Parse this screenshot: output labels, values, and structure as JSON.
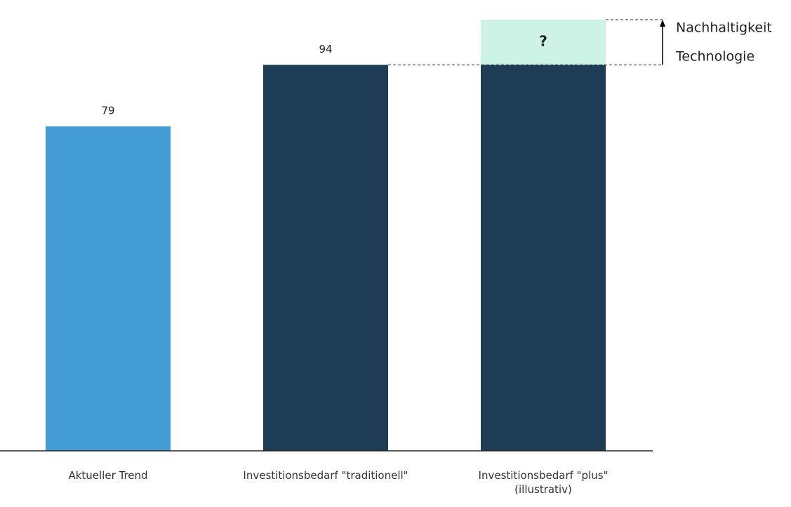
{
  "chart_data": {
    "type": "bar",
    "stacked": true,
    "categories": [
      "Aktueller Trend",
      "Investitionsbedarf \"traditionell\"",
      "Investitionsbedarf \"plus\"\n(illustrativ)"
    ],
    "series": [
      {
        "values": [
          79,
          94,
          94
        ],
        "value_labels": [
          "79",
          "94",
          null
        ],
        "colors": [
          "#439bd6",
          "#1d3c55",
          "#1d3c55"
        ]
      },
      {
        "values": [
          null,
          null,
          11
        ],
        "value_labels": [
          null,
          null,
          "?"
        ],
        "color": "#cdf3e7",
        "label_color": "#1a8a6e"
      }
    ],
    "ylim": [
      0,
      105
    ],
    "annotations": [
      "Nachhaltigkeit",
      "Technologie"
    ]
  }
}
